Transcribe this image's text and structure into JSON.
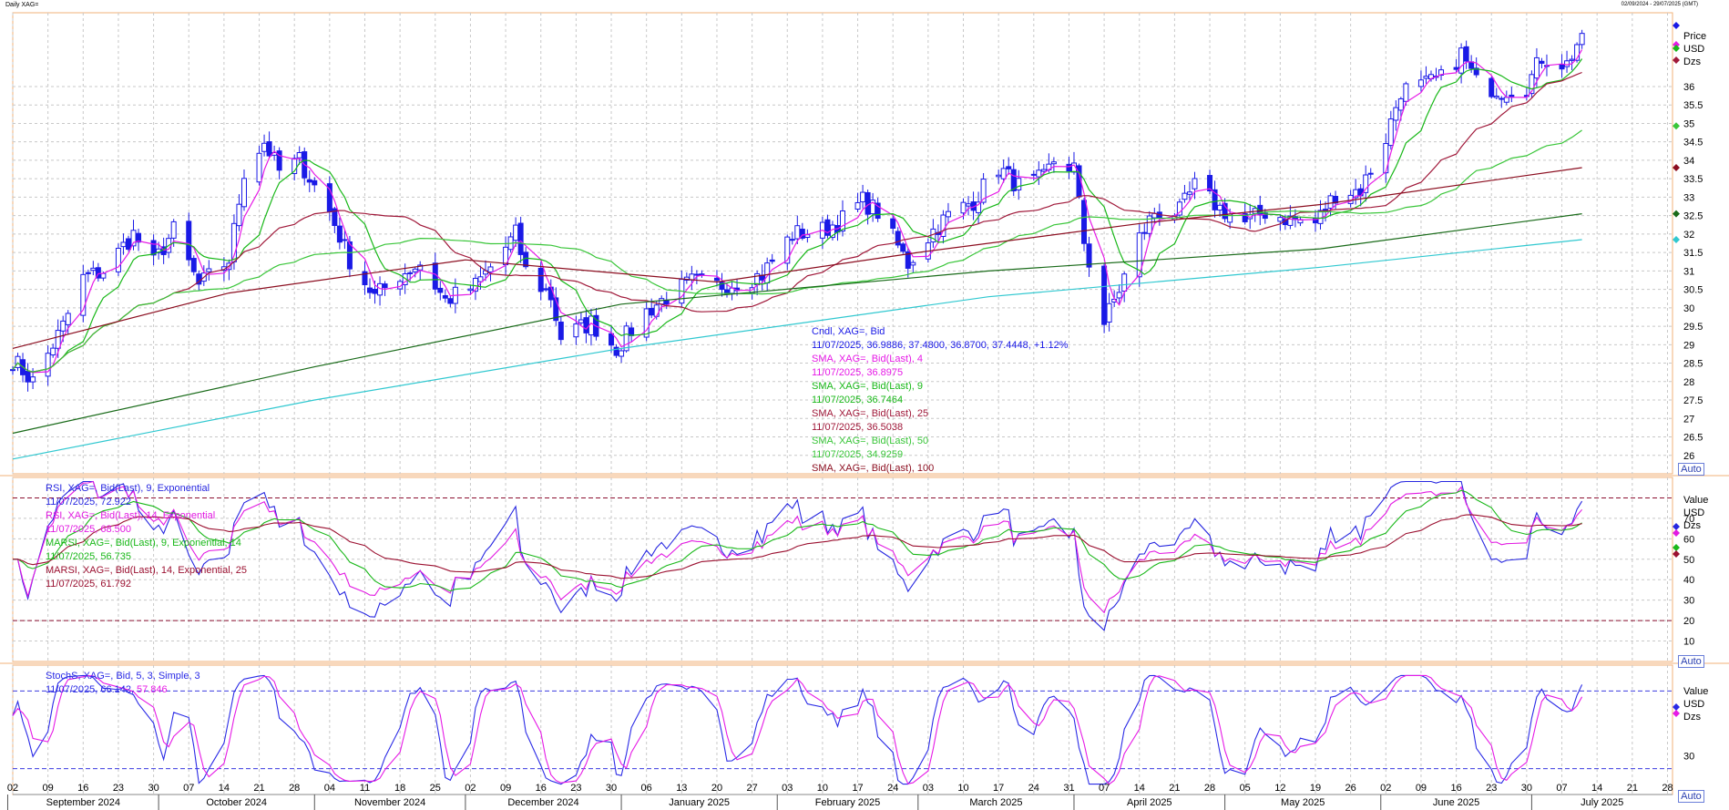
{
  "window": {
    "title": "Daily XAG=",
    "date_range": "02/09/2024 - 29/07/2025 (GMT)"
  },
  "buttons": {
    "auto": "Auto"
  },
  "colors": {
    "candle": "#1a1ae6",
    "sma4": "#e61ae6",
    "sma9": "#19b819",
    "sma25": "#a0193a",
    "sma50": "#3ac63a",
    "sma100": "#8b0d1f",
    "sma200": "#1a6b1a",
    "sma300": "#30c8d0",
    "rsi9": "#2727e0",
    "rsi14": "#e21ae2",
    "marsi9": "#1ab81a",
    "marsi14": "#9b1030",
    "stochK": "#2a2ae6",
    "stochD": "#e61ae6",
    "grid": "#c8c8c8",
    "panel_border": "#f2b27a"
  },
  "chart_data": [
    {
      "type": "candlestick",
      "panel": "price",
      "axis_title": "Price",
      "axis_unit": "USD",
      "axis_extra": "Dzs",
      "ylim": [
        25.5,
        38.0
      ],
      "yticks": [
        26,
        26.5,
        27,
        27.5,
        28,
        28.5,
        29,
        29.5,
        30,
        30.5,
        31,
        31.5,
        32,
        32.5,
        33,
        33.5,
        34,
        34.5,
        35,
        35.5,
        36
      ],
      "xlim": [
        "2024-09-02",
        "2025-07-29"
      ],
      "x_tick_labels": [
        "02",
        "09",
        "16",
        "23",
        "30",
        "07",
        "14",
        "21",
        "28",
        "04",
        "11",
        "18",
        "25",
        "02",
        "09",
        "16",
        "23",
        "30",
        "06",
        "13",
        "20",
        "27",
        "03",
        "10",
        "17",
        "24",
        "03",
        "10",
        "17",
        "24",
        "31",
        "07",
        "14",
        "21",
        "28",
        "05",
        "12",
        "19",
        "26",
        "02",
        "09",
        "16",
        "23",
        "30",
        "07",
        "14",
        "21",
        "28"
      ],
      "x_tick_dates": [
        "2024-09-02",
        "2024-09-09",
        "2024-09-16",
        "2024-09-23",
        "2024-09-30",
        "2024-10-07",
        "2024-10-14",
        "2024-10-21",
        "2024-10-28",
        "2024-11-04",
        "2024-11-11",
        "2024-11-18",
        "2024-11-25",
        "2024-12-02",
        "2024-12-09",
        "2024-12-16",
        "2024-12-23",
        "2024-12-30",
        "2025-01-06",
        "2025-01-13",
        "2025-01-20",
        "2025-01-27",
        "2025-02-03",
        "2025-02-10",
        "2025-02-17",
        "2025-02-24",
        "2025-03-03",
        "2025-03-10",
        "2025-03-17",
        "2025-03-24",
        "2025-03-31",
        "2025-04-07",
        "2025-04-14",
        "2025-04-21",
        "2025-04-28",
        "2025-05-05",
        "2025-05-12",
        "2025-05-19",
        "2025-05-26",
        "2025-06-02",
        "2025-06-09",
        "2025-06-16",
        "2025-06-23",
        "2025-06-30",
        "2025-07-07",
        "2025-07-14",
        "2025-07-21",
        "2025-07-28"
      ],
      "months": [
        {
          "label": "September 2024",
          "date": "2024-09-01"
        },
        {
          "label": "October 2024",
          "date": "2024-10-01"
        },
        {
          "label": "November 2024",
          "date": "2024-11-01"
        },
        {
          "label": "December 2024",
          "date": "2024-12-01"
        },
        {
          "label": "January 2025",
          "date": "2025-01-01"
        },
        {
          "label": "February 2025",
          "date": "2025-02-01"
        },
        {
          "label": "March 2025",
          "date": "2025-03-01"
        },
        {
          "label": "April 2025",
          "date": "2025-04-01"
        },
        {
          "label": "May 2025",
          "date": "2025-05-01"
        },
        {
          "label": "June 2025",
          "date": "2025-06-01"
        },
        {
          "label": "July 2025",
          "date": "2025-07-01"
        }
      ],
      "close_anchors": [
        [
          "2024-09-02",
          28.6
        ],
        [
          "2024-09-06",
          28.0
        ],
        [
          "2024-09-12",
          29.5
        ],
        [
          "2024-09-16",
          30.8
        ],
        [
          "2024-09-20",
          31.0
        ],
        [
          "2024-09-26",
          32.0
        ],
        [
          "2024-09-30",
          31.2
        ],
        [
          "2024-10-04",
          32.1
        ],
        [
          "2024-10-09",
          30.6
        ],
        [
          "2024-10-15",
          31.3
        ],
        [
          "2024-10-18",
          33.7
        ],
        [
          "2024-10-22",
          34.5
        ],
        [
          "2024-10-25",
          33.7
        ],
        [
          "2024-10-29",
          34.0
        ],
        [
          "2024-11-04",
          32.6
        ],
        [
          "2024-11-08",
          31.3
        ],
        [
          "2024-11-13",
          30.3
        ],
        [
          "2024-11-18",
          30.9
        ],
        [
          "2024-11-22",
          31.2
        ],
        [
          "2024-11-27",
          30.2
        ],
        [
          "2024-12-03",
          30.6
        ],
        [
          "2024-12-06",
          31.1
        ],
        [
          "2024-12-11",
          32.0
        ],
        [
          "2024-12-13",
          31.0
        ],
        [
          "2024-12-18",
          30.3
        ],
        [
          "2024-12-20",
          29.2
        ],
        [
          "2024-12-26",
          29.6
        ],
        [
          "2024-12-31",
          28.9
        ],
        [
          "2025-01-06",
          29.9
        ],
        [
          "2025-01-10",
          30.3
        ],
        [
          "2025-01-15",
          30.7
        ],
        [
          "2025-01-20",
          30.6
        ],
        [
          "2025-01-24",
          30.7
        ],
        [
          "2025-01-29",
          30.9
        ],
        [
          "2025-02-04",
          32.0
        ],
        [
          "2025-02-10",
          32.1
        ],
        [
          "2025-02-14",
          32.4
        ],
        [
          "2025-02-18",
          32.9
        ],
        [
          "2025-02-21",
          32.6
        ],
        [
          "2025-02-27",
          31.2
        ],
        [
          "2025-03-04",
          32.1
        ],
        [
          "2025-03-07",
          32.5
        ],
        [
          "2025-03-12",
          32.9
        ],
        [
          "2025-03-17",
          33.8
        ],
        [
          "2025-03-21",
          33.3
        ],
        [
          "2025-03-26",
          33.5
        ],
        [
          "2025-03-28",
          34.0
        ],
        [
          "2025-04-01",
          33.8
        ],
        [
          "2025-04-03",
          31.8
        ],
        [
          "2025-04-07",
          29.6
        ],
        [
          "2025-04-10",
          30.5
        ],
        [
          "2025-04-14",
          31.9
        ],
        [
          "2025-04-17",
          32.6
        ],
        [
          "2025-04-22",
          32.6
        ],
        [
          "2025-04-25",
          33.3
        ],
        [
          "2025-04-30",
          32.7
        ],
        [
          "2025-05-05",
          32.3
        ],
        [
          "2025-05-09",
          32.6
        ],
        [
          "2025-05-14",
          32.4
        ],
        [
          "2025-05-19",
          32.3
        ],
        [
          "2025-05-23",
          33.1
        ],
        [
          "2025-05-28",
          33.2
        ],
        [
          "2025-06-02",
          34.6
        ],
        [
          "2025-06-05",
          35.9
        ],
        [
          "2025-06-09",
          36.0
        ],
        [
          "2025-06-13",
          36.2
        ],
        [
          "2025-06-17",
          36.9
        ],
        [
          "2025-06-20",
          36.1
        ],
        [
          "2025-06-25",
          35.9
        ],
        [
          "2025-06-30",
          36.0
        ],
        [
          "2025-07-03",
          36.8
        ],
        [
          "2025-07-08",
          36.6
        ],
        [
          "2025-07-11",
          37.44
        ]
      ],
      "series": [
        {
          "name": "SMA, XAG=, Bid(Last),  4",
          "color_key": "sma4",
          "lag": 2
        },
        {
          "name": "SMA, XAG=, Bid(Last),  9",
          "color_key": "sma9",
          "lag": 4.5
        },
        {
          "name": "SMA, XAG=, Bid(Last),  25",
          "color_key": "sma25",
          "lag": 12
        },
        {
          "name": "SMA, XAG=, Bid(Last),  50",
          "color_key": "sma50",
          "lag": 25
        }
      ],
      "long_ma": [
        {
          "name": "SMA, XAG=, Bid(Last),  100",
          "color_key": "sma100",
          "points": [
            [
              "2024-09-02",
              28.9
            ],
            [
              "2024-10-15",
              30.4
            ],
            [
              "2024-12-01",
              31.3
            ],
            [
              "2025-01-20",
              30.7
            ],
            [
              "2025-03-01",
              31.5
            ],
            [
              "2025-04-15",
              32.3
            ],
            [
              "2025-05-20",
              32.8
            ],
            [
              "2025-07-11",
              33.8
            ]
          ]
        },
        {
          "name": "",
          "color_key": "sma200",
          "points": [
            [
              "2024-09-02",
              26.6
            ],
            [
              "2024-11-01",
              28.4
            ],
            [
              "2025-01-01",
              30.1
            ],
            [
              "2025-03-15",
              31.0
            ],
            [
              "2025-05-20",
              31.6
            ],
            [
              "2025-07-11",
              32.55
            ]
          ]
        },
        {
          "name": "",
          "color_key": "sma300",
          "points": [
            [
              "2024-09-02",
              25.9
            ],
            [
              "2024-11-01",
              27.5
            ],
            [
              "2025-01-01",
              28.9
            ],
            [
              "2025-03-15",
              30.3
            ],
            [
              "2025-05-20",
              31.1
            ],
            [
              "2025-07-11",
              31.85
            ]
          ]
        }
      ],
      "legend": [
        {
          "text": "Cndl, XAG=, Bid",
          "color_key": "candle"
        },
        {
          "text": "11/07/2025, 36.9886, 37.4800, 36.8700, 37.4448, +1.12%",
          "color_key": "candle"
        },
        {
          "text": "SMA, XAG=, Bid(Last),  4",
          "color_key": "sma4"
        },
        {
          "text": "11/07/2025, 36.8975",
          "color_key": "sma4"
        },
        {
          "text": "SMA, XAG=, Bid(Last),  9",
          "color_key": "sma9"
        },
        {
          "text": "11/07/2025, 36.7464",
          "color_key": "sma9"
        },
        {
          "text": "SMA, XAG=, Bid(Last),  25",
          "color_key": "sma25"
        },
        {
          "text": "11/07/2025, 36.5038",
          "color_key": "sma25"
        },
        {
          "text": "SMA, XAG=, Bid(Last),  50",
          "color_key": "sma50"
        },
        {
          "text": "11/07/2025, 34.9259",
          "color_key": "sma50"
        },
        {
          "text": "SMA, XAG=, Bid(Last),  100",
          "color_key": "sma100"
        }
      ]
    },
    {
      "type": "line",
      "panel": "rsi",
      "axis_title": "Value",
      "axis_unit": "USD",
      "axis_extra": "Dzs",
      "ylim": [
        0,
        90
      ],
      "yticks": [
        10,
        20,
        30,
        40,
        50,
        60,
        70
      ],
      "reference_lines": [
        20,
        80
      ],
      "legend": [
        {
          "text": "RSI, XAG=, Bid(Last),  9, Exponential",
          "color_key": "rsi9"
        },
        {
          "text": "11/07/2025, 72.922",
          "color_key": "rsi9"
        },
        {
          "text": "RSI, XAG=, Bid(Last),  14, Exponential",
          "color_key": "rsi14"
        },
        {
          "text": "11/07/2025, 68.500",
          "color_key": "rsi14"
        },
        {
          "text": "MARSI, XAG=, Bid(Last),  9, Exponential, 14",
          "color_key": "marsi9"
        },
        {
          "text": "11/07/2025, 56.735",
          "color_key": "marsi9"
        },
        {
          "text": "MARSI, XAG=, Bid(Last),  14, Exponential, 25",
          "color_key": "marsi14"
        },
        {
          "text": "11/07/2025, 61.792",
          "color_key": "marsi14"
        }
      ]
    },
    {
      "type": "line",
      "panel": "stoch",
      "axis_title": "Value",
      "axis_unit": "USD",
      "axis_extra": "Dzs",
      "ylim": [
        0,
        100
      ],
      "yticks": [
        30
      ],
      "reference_lines": [
        20,
        80
      ],
      "legend": [
        {
          "text": "StochS, XAG=, Bid,  5, 3, Simple, 3",
          "color_key": "stochK"
        },
        {
          "text": "11/07/2025, 66.142, ",
          "color_key": "stochK"
        },
        {
          "text": "57.846",
          "color_key": "stochD"
        }
      ]
    }
  ]
}
